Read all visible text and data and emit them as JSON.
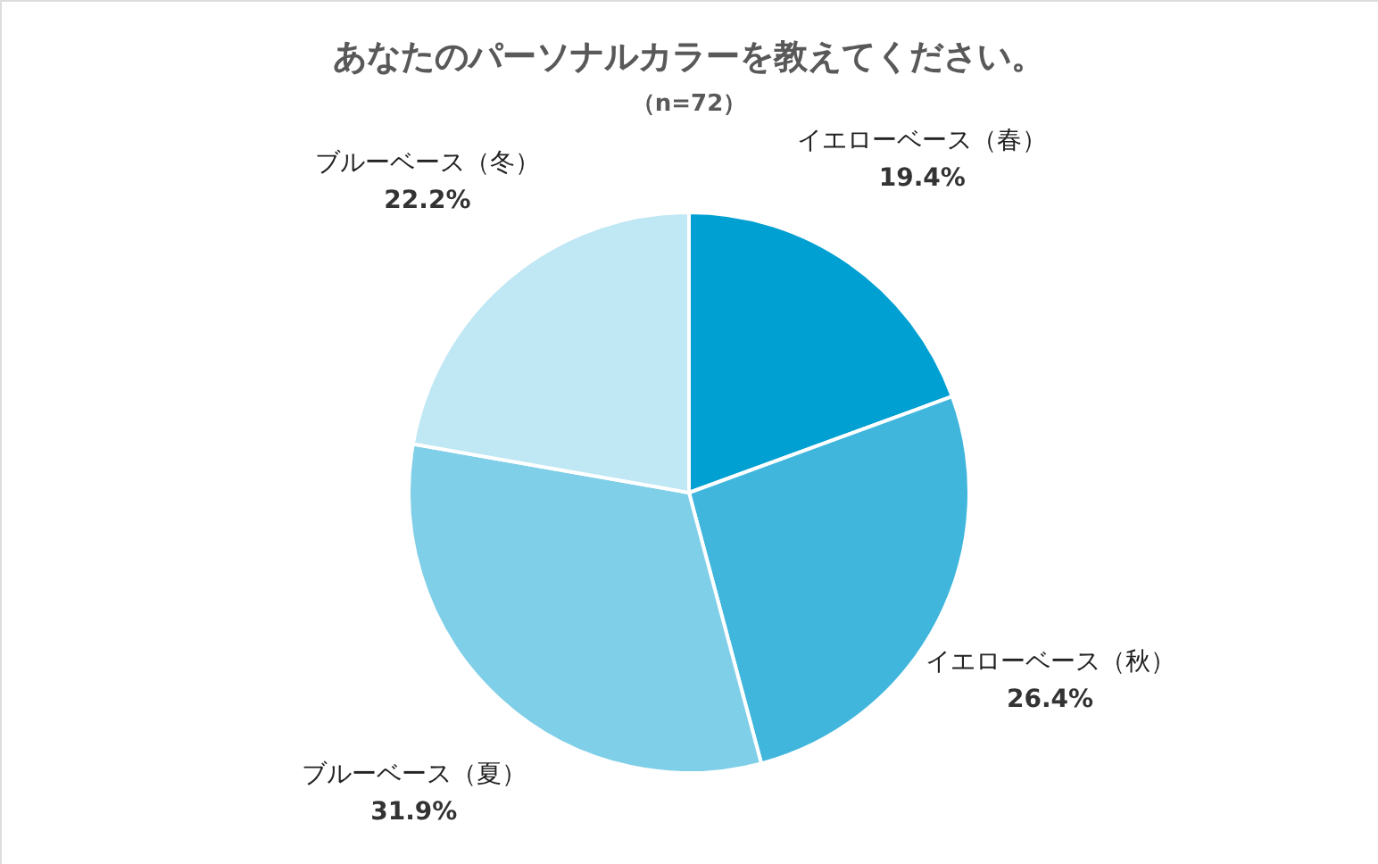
{
  "chart_data": {
    "type": "pie",
    "title": "あなたのパーソナルカラーを教えてください。",
    "subtitle": "（n=72）",
    "categories": [
      "イエローベース（春）",
      "イエローベース（秋）",
      "ブルーベース（夏）",
      "ブルーベース（冬）"
    ],
    "values": [
      19.4,
      26.4,
      31.9,
      22.2
    ],
    "value_labels": [
      "19.4%",
      "26.4%",
      "31.9%",
      "22.2%"
    ],
    "colors": [
      "#00a0d2",
      "#40b6dd",
      "#80cfe8",
      "#c0e7f4"
    ]
  }
}
